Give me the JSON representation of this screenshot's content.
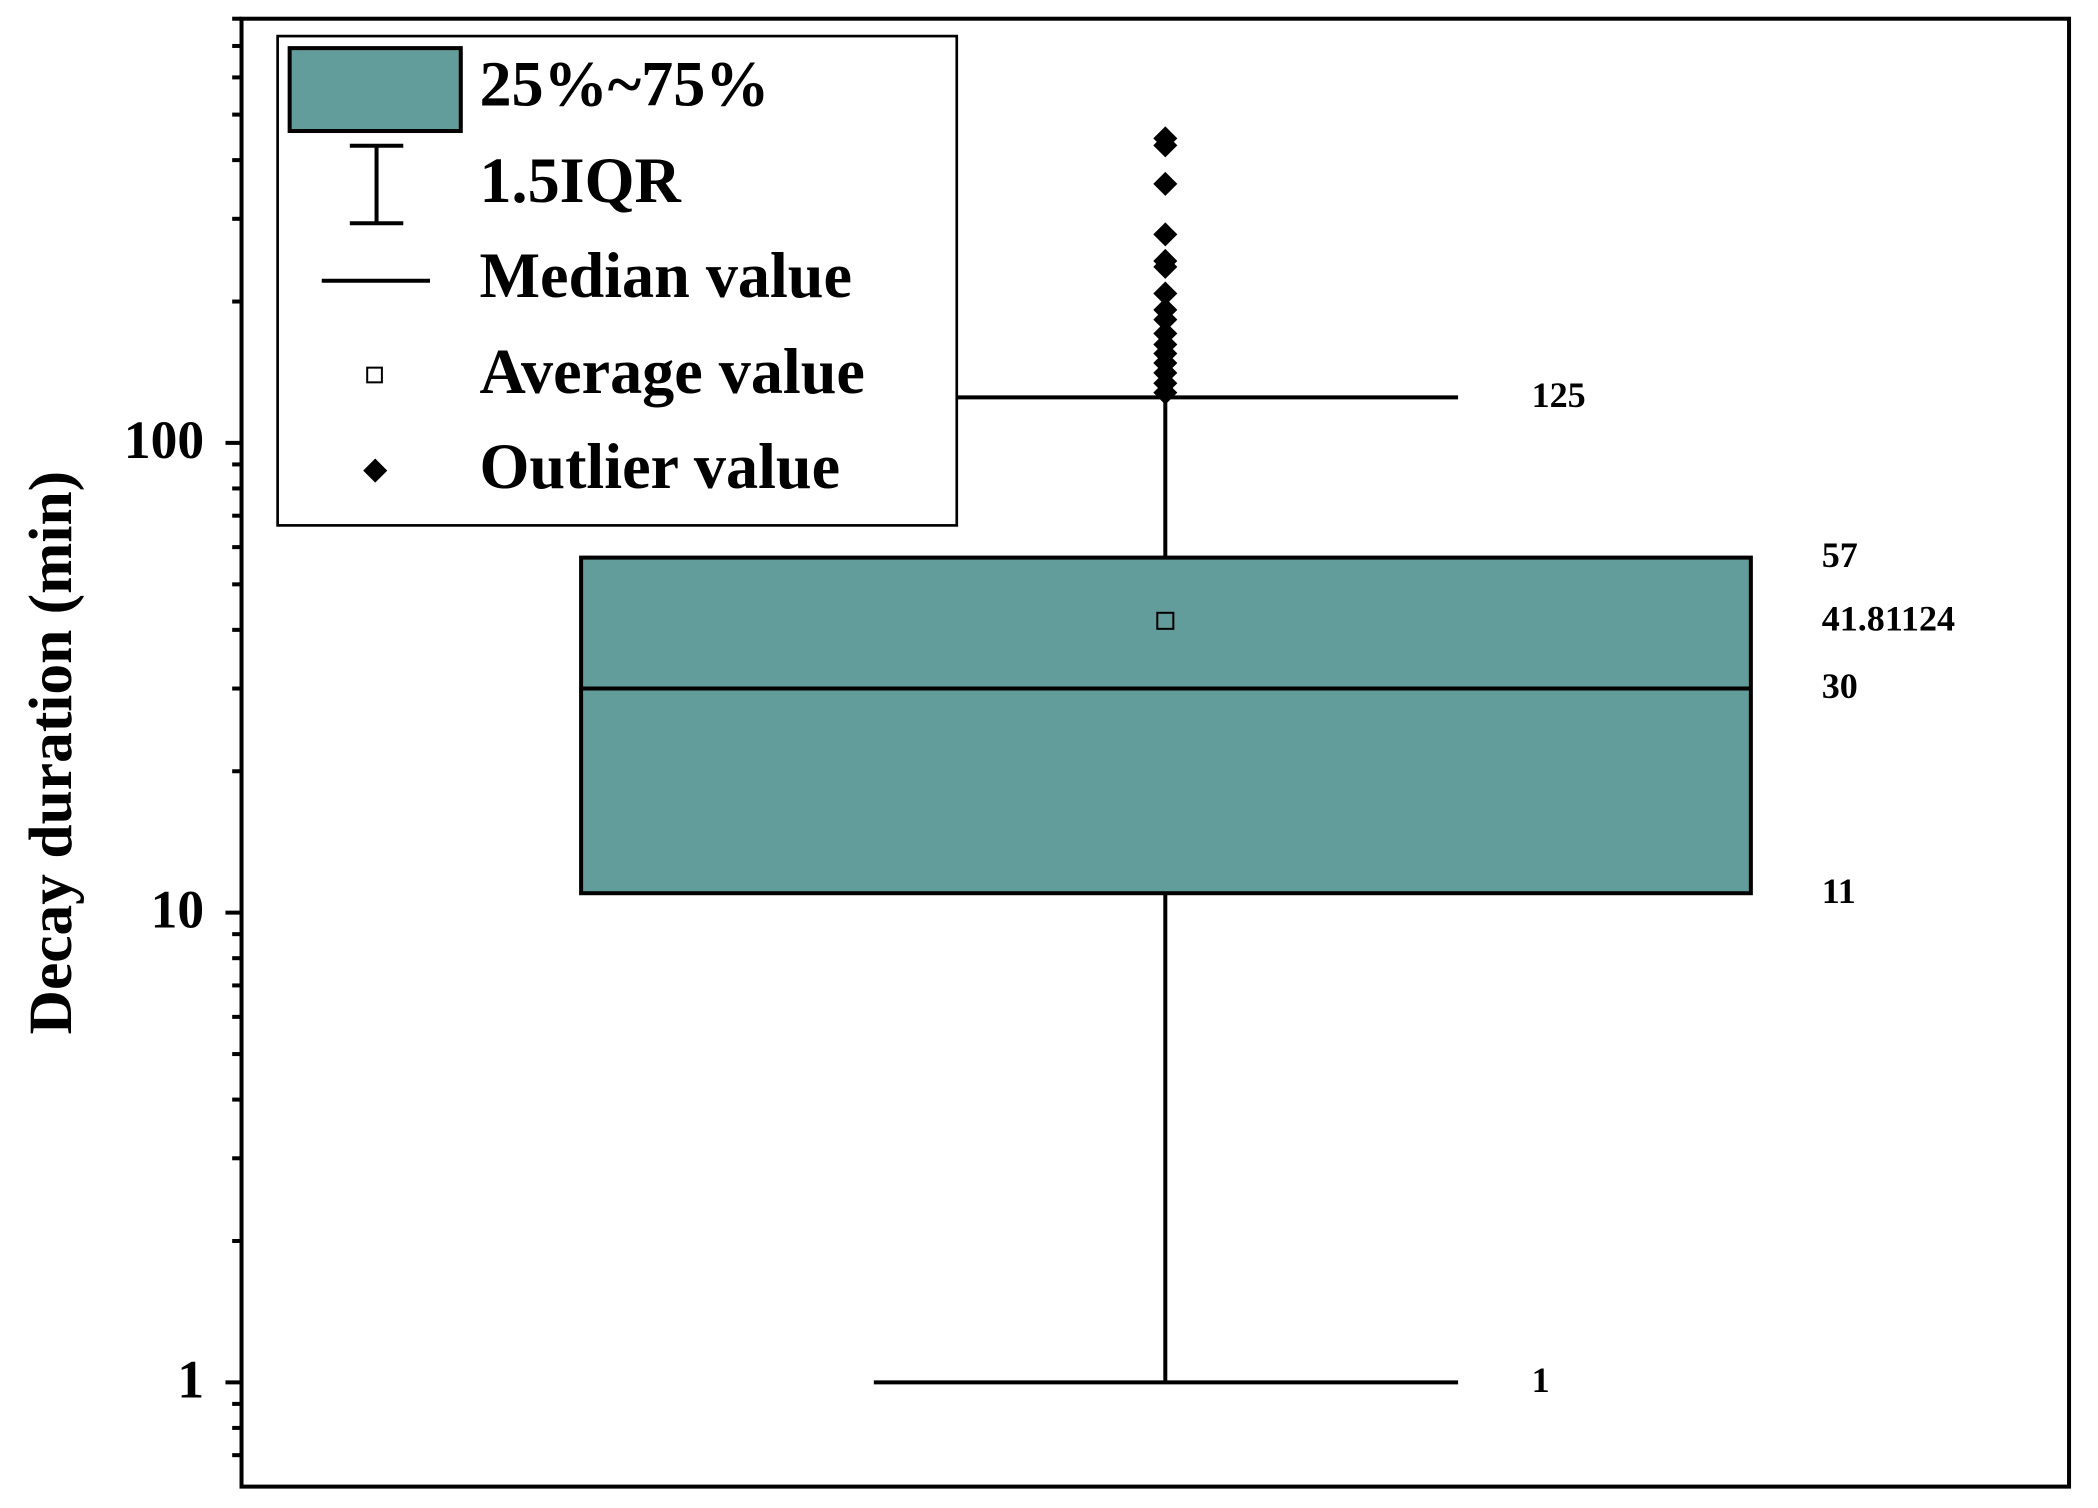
{
  "chart_data": {
    "type": "box",
    "y_label": "Decay duration (min)",
    "log_y": true,
    "ylim": [
      0.6,
      800
    ],
    "yticks": [
      1,
      10,
      100
    ],
    "minor_yticks": [
      0.7,
      0.8,
      0.9,
      2,
      3,
      4,
      5,
      6,
      7,
      8,
      9,
      20,
      30,
      40,
      50,
      60,
      70,
      80,
      90,
      200,
      300,
      400,
      500,
      600,
      700,
      800
    ],
    "color": "#629c9b",
    "box": {
      "whisker_low": 1,
      "q1": 11,
      "median": 30,
      "mean": 41.81124,
      "q3": 57,
      "whisker_high": 125,
      "outliers": [
        445,
        430,
        356,
        278,
        244,
        237,
        208,
        192,
        183,
        171,
        162,
        155,
        148,
        141,
        134,
        128
      ]
    },
    "legend": {
      "box": "25%~75%",
      "whisker": "1.5IQR",
      "median": "Median value",
      "mean": "Average value",
      "outlier": "Outlier value"
    },
    "legend_position": "upper left"
  }
}
